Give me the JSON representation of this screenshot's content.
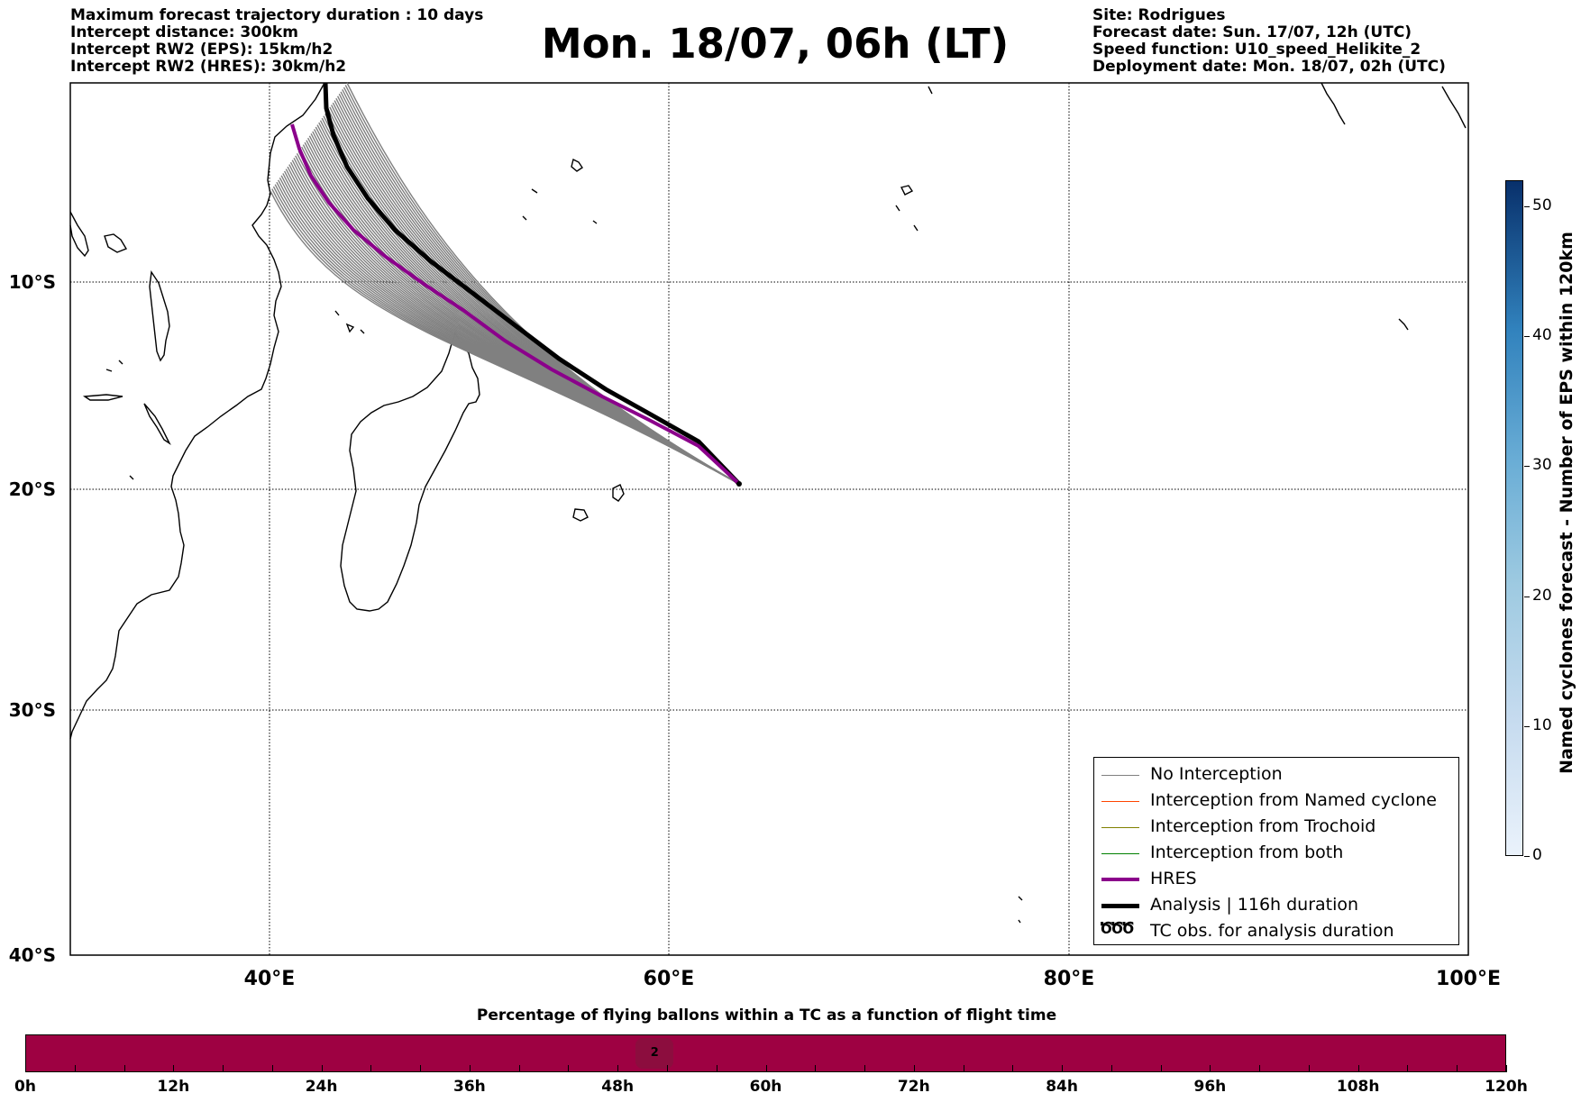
{
  "header": {
    "left": [
      "Maximum forecast trajectory duration : 10 days",
      "Intercept distance: 300km",
      "Intercept RW2 (EPS):  15km/h2",
      "Intercept RW2 (HRES): 30km/h2"
    ],
    "title": "Mon. 18/07, 06h (LT)",
    "right": [
      "Site: Rodrigues",
      "Forecast date: Sun. 17/07, 12h (UTC)",
      "Speed function: U10_speed_Helikite_2",
      "Deployment date: Mon. 18/07, 02h (UTC)"
    ]
  },
  "map": {
    "lat_labels": [
      "10°S",
      "20°S",
      "30°S",
      "40°S"
    ],
    "lon_labels": [
      "40°E",
      "60°E",
      "80°E",
      "100°E"
    ],
    "extent": {
      "lon": [
        30,
        100
      ],
      "lat": [
        -40,
        -0.5
      ]
    },
    "launch_site": {
      "lon": 63.4,
      "lat": -19.7
    }
  },
  "legend": {
    "items": [
      {
        "label": "No Interception",
        "color": "#808080"
      },
      {
        "label": "Interception from Named cyclone",
        "color": "#ff4500"
      },
      {
        "label": "Interception from Trochoid",
        "color": "#808000"
      },
      {
        "label": "Interception from both",
        "color": "#008000"
      },
      {
        "label": "HRES",
        "color": "#8b008b"
      },
      {
        "label": "Analysis | 116h duration",
        "color": "#000000"
      },
      {
        "label": "TC obs. for analysis duration",
        "color": "#000000",
        "symbol": "ԾԾԾ"
      }
    ]
  },
  "colorbar": {
    "title": "Named cyclones forecast - Number of EPS within 120km",
    "ticks": [
      "0",
      "10",
      "20",
      "30",
      "40",
      "50"
    ],
    "range": [
      0,
      52
    ]
  },
  "flight_bar": {
    "title": "Percentage of flying ballons within a TC as a function of flight time",
    "hours": [
      "0h",
      "12h",
      "24h",
      "36h",
      "48h",
      "60h",
      "72h",
      "84h",
      "96h",
      "108h",
      "120h"
    ],
    "marker_value": "2",
    "marker_hour": 51
  }
}
